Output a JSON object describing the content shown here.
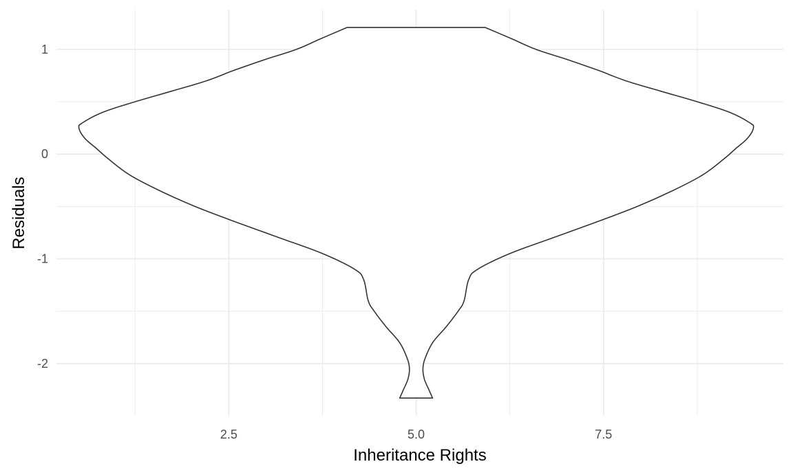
{
  "chart_data": {
    "type": "violin",
    "title": "",
    "xlabel": "Inheritance Rights",
    "ylabel": "Residuals",
    "xlim": [
      0.2,
      9.9
    ],
    "ylim": [
      -2.5,
      1.38
    ],
    "x_ticks": [
      2.5,
      5.0,
      7.5
    ],
    "x_tick_labels": [
      "2.5",
      "5.0",
      "7.5"
    ],
    "x_minor_ticks": [
      1.25,
      3.75,
      6.25,
      8.75
    ],
    "y_ticks": [
      1,
      0,
      -1,
      -2
    ],
    "y_tick_labels": [
      "1",
      "0",
      "-1",
      "-2"
    ],
    "y_minor_ticks": [
      0.5,
      -0.5,
      -1.5
    ],
    "grid": true,
    "violin": {
      "center_x": 5.0,
      "outline_color": "#333333",
      "fill_color": "#ffffff",
      "y_range": [
        -2.33,
        1.21
      ],
      "profile": [
        {
          "y": 1.21,
          "half_width": 0.92
        },
        {
          "y": 1.1,
          "half_width": 1.28
        },
        {
          "y": 1.0,
          "half_width": 1.6
        },
        {
          "y": 0.9,
          "half_width": 2.03
        },
        {
          "y": 0.8,
          "half_width": 2.43
        },
        {
          "y": 0.7,
          "half_width": 2.8
        },
        {
          "y": 0.6,
          "half_width": 3.27
        },
        {
          "y": 0.5,
          "half_width": 3.75
        },
        {
          "y": 0.4,
          "half_width": 4.18
        },
        {
          "y": 0.3,
          "half_width": 4.45
        },
        {
          "y": 0.25,
          "half_width": 4.5
        },
        {
          "y": 0.15,
          "half_width": 4.42
        },
        {
          "y": 0.05,
          "half_width": 4.26
        },
        {
          "y": -0.05,
          "half_width": 4.1
        },
        {
          "y": -0.2,
          "half_width": 3.82
        },
        {
          "y": -0.35,
          "half_width": 3.42
        },
        {
          "y": -0.5,
          "half_width": 2.95
        },
        {
          "y": -0.65,
          "half_width": 2.4
        },
        {
          "y": -0.8,
          "half_width": 1.82
        },
        {
          "y": -0.95,
          "half_width": 1.25
        },
        {
          "y": -1.1,
          "half_width": 0.82
        },
        {
          "y": -1.2,
          "half_width": 0.7
        },
        {
          "y": -1.4,
          "half_width": 0.64
        },
        {
          "y": -1.5,
          "half_width": 0.56
        },
        {
          "y": -1.65,
          "half_width": 0.4
        },
        {
          "y": -1.8,
          "half_width": 0.22
        },
        {
          "y": -1.95,
          "half_width": 0.12
        },
        {
          "y": -2.05,
          "half_width": 0.09
        },
        {
          "y": -2.15,
          "half_width": 0.11
        },
        {
          "y": -2.25,
          "half_width": 0.17
        },
        {
          "y": -2.33,
          "half_width": 0.22
        }
      ]
    }
  }
}
